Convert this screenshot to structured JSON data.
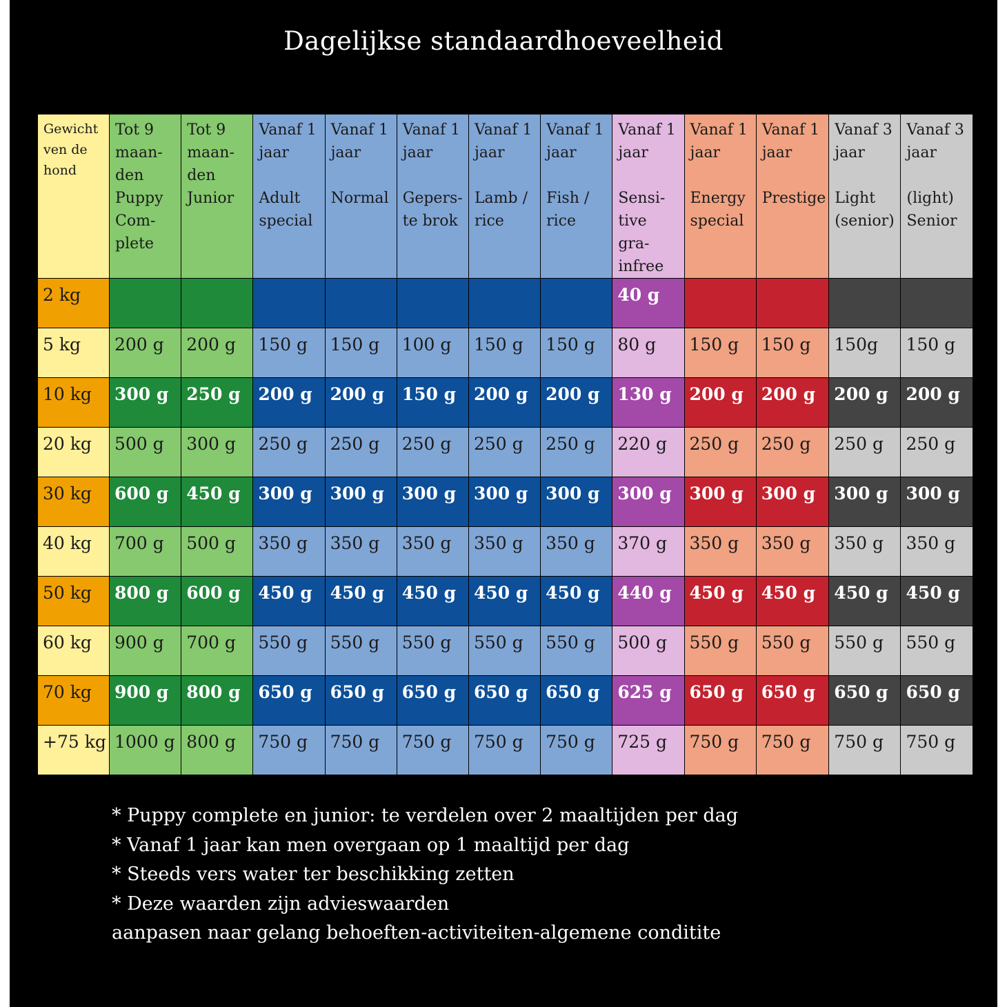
{
  "title": "Dagelijkse standaardhoeveelheid",
  "columns": [
    {
      "label": "Gewicht\nven de\nhond",
      "light": "#fff09a",
      "dark": "#f0a000"
    },
    {
      "label": "Tot 9\nmaan-\nden\nPuppy\nCom-\nplete",
      "light": "#86c96e",
      "dark": "#1f8a3a"
    },
    {
      "label": "Tot 9\nmaan-\nden\nJunior",
      "light": "#86c96e",
      "dark": "#1f8a3a"
    },
    {
      "label": "Vanaf 1\njaar\n\nAdult\nspecial",
      "light": "#80a6d6",
      "dark": "#0d4f98"
    },
    {
      "label": "Vanaf 1\njaar\n\nNormal",
      "light": "#80a6d6",
      "dark": "#0d4f98"
    },
    {
      "label": "Vanaf 1\njaar\n\nGepers-\nte brok",
      "light": "#80a6d6",
      "dark": "#0d4f98"
    },
    {
      "label": "Vanaf 1\njaar\n\nLamb /\nrice",
      "light": "#80a6d6",
      "dark": "#0d4f98"
    },
    {
      "label": "Vanaf 1\njaar\n\nFish /\nrice",
      "light": "#80a6d6",
      "dark": "#0d4f98"
    },
    {
      "label": "Vanaf 1\njaar\n\nSensi-\ntive gra-\ninfree",
      "light": "#e2b7e0",
      "dark": "#a349a8"
    },
    {
      "label": "Vanaf 1\njaar\n\nEnergy\nspecial",
      "light": "#f0a282",
      "dark": "#c4222e"
    },
    {
      "label": "Vanaf 1\njaar\n\nPrestige",
      "light": "#f0a282",
      "dark": "#c4222e"
    },
    {
      "label": "Vanaf 3\njaar\n\nLight\n(senior)",
      "light": "#cacaca",
      "dark": "#444444"
    },
    {
      "label": "Vanaf 3\njaar\n\n(light)\nSenior",
      "light": "#cacaca",
      "dark": "#444444"
    }
  ],
  "rows": [
    {
      "weight": "2 kg",
      "values": [
        "",
        "",
        "",
        "",
        "",
        "",
        "",
        "40 g",
        "",
        "",
        "",
        ""
      ]
    },
    {
      "weight": "5 kg",
      "values": [
        "200 g",
        "200 g",
        "150 g",
        "150 g",
        "100 g",
        "150 g",
        "150 g",
        "80 g",
        "150 g",
        "150 g",
        "150g",
        "150 g"
      ]
    },
    {
      "weight": "10 kg",
      "values": [
        "300 g",
        "250 g",
        "200 g",
        "200 g",
        "150 g",
        "200 g",
        "200 g",
        "130 g",
        "200 g",
        "200 g",
        "200 g",
        "200 g"
      ]
    },
    {
      "weight": "20 kg",
      "values": [
        "500 g",
        "300 g",
        "250 g",
        "250 g",
        "250 g",
        "250 g",
        "250 g",
        "220 g",
        "250 g",
        "250 g",
        "250 g",
        "250 g"
      ]
    },
    {
      "weight": "30 kg",
      "values": [
        "600 g",
        "450 g",
        "300 g",
        "300 g",
        "300 g",
        "300 g",
        "300 g",
        "300 g",
        "300 g",
        "300 g",
        "300 g",
        "300 g"
      ]
    },
    {
      "weight": "40 kg",
      "values": [
        "700 g",
        "500 g",
        "350 g",
        "350 g",
        "350 g",
        "350 g",
        "350 g",
        "370 g",
        "350 g",
        "350 g",
        "350 g",
        "350 g"
      ]
    },
    {
      "weight": "50 kg",
      "values": [
        "800 g",
        "600 g",
        "450 g",
        "450 g",
        "450 g",
        "450 g",
        "450 g",
        "440 g",
        "450 g",
        "450 g",
        "450 g",
        "450 g"
      ]
    },
    {
      "weight": "60 kg",
      "values": [
        "900 g",
        "700 g",
        "550 g",
        "550 g",
        "550 g",
        "550 g",
        "550 g",
        "500 g",
        "550 g",
        "550 g",
        "550 g",
        "550 g"
      ]
    },
    {
      "weight": "70 kg",
      "values": [
        "900 g",
        "800 g",
        "650 g",
        "650 g",
        "650 g",
        "650 g",
        "650 g",
        "625 g",
        "650 g",
        "650 g",
        "650 g",
        "650 g"
      ]
    },
    {
      "weight": "+75 kg",
      "values": [
        "1000 g",
        "800 g",
        "750 g",
        "750 g",
        "750 g",
        "750 g",
        "750 g",
        "725 g",
        "750 g",
        "750 g",
        "750 g",
        "750 g"
      ]
    }
  ],
  "notes": [
    "* Puppy complete en junior: te verdelen over 2 maaltijden per dag",
    "* Vanaf 1 jaar kan men overgaan op 1 maaltijd per dag",
    "* Steeds vers water ter beschikking zetten",
    "* Deze waarden zijn advieswaarden",
    "aanpasen naar gelang behoeften-activiteiten-algemene conditite"
  ]
}
